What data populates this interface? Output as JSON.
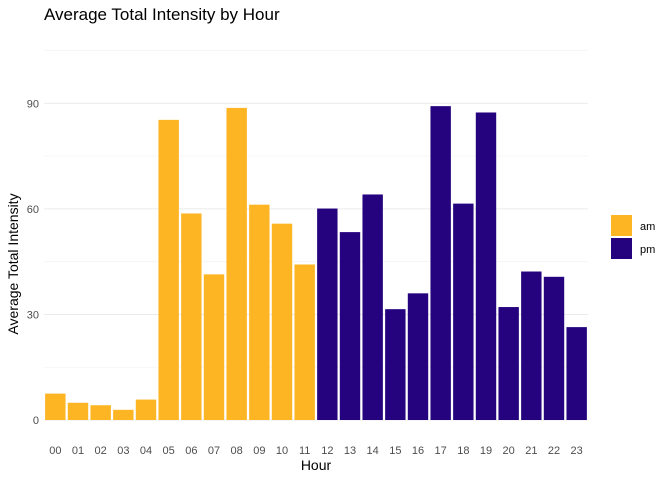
{
  "chart_data": {
    "type": "bar",
    "title": "Average Total Intensity by Hour",
    "xlabel": "Hour",
    "ylabel": "Average Total Intensity",
    "ylim": [
      0,
      108
    ],
    "yticks": [
      0,
      30,
      60,
      90
    ],
    "grid": true,
    "legend_position": "right",
    "categories": [
      "00",
      "01",
      "02",
      "03",
      "04",
      "05",
      "06",
      "07",
      "08",
      "09",
      "10",
      "11",
      "12",
      "13",
      "14",
      "15",
      "16",
      "17",
      "18",
      "19",
      "20",
      "21",
      "22",
      "23"
    ],
    "values": [
      7.5,
      4.9,
      4.2,
      2.9,
      5.8,
      85.3,
      58.7,
      41.4,
      88.7,
      61.2,
      55.8,
      44.2,
      60.1,
      53.4,
      64.1,
      31.5,
      36.0,
      89.2,
      61.5,
      87.4,
      32.1,
      42.2,
      40.7,
      26.4
    ],
    "groups": [
      "am",
      "am",
      "am",
      "am",
      "am",
      "am",
      "am",
      "am",
      "am",
      "am",
      "am",
      "am",
      "pm",
      "pm",
      "pm",
      "pm",
      "pm",
      "pm",
      "pm",
      "pm",
      "pm",
      "pm",
      "pm",
      "pm"
    ],
    "legend": [
      {
        "label": "am",
        "color": "#FDB523"
      },
      {
        "label": "pm",
        "color": "#25037E"
      }
    ]
  }
}
